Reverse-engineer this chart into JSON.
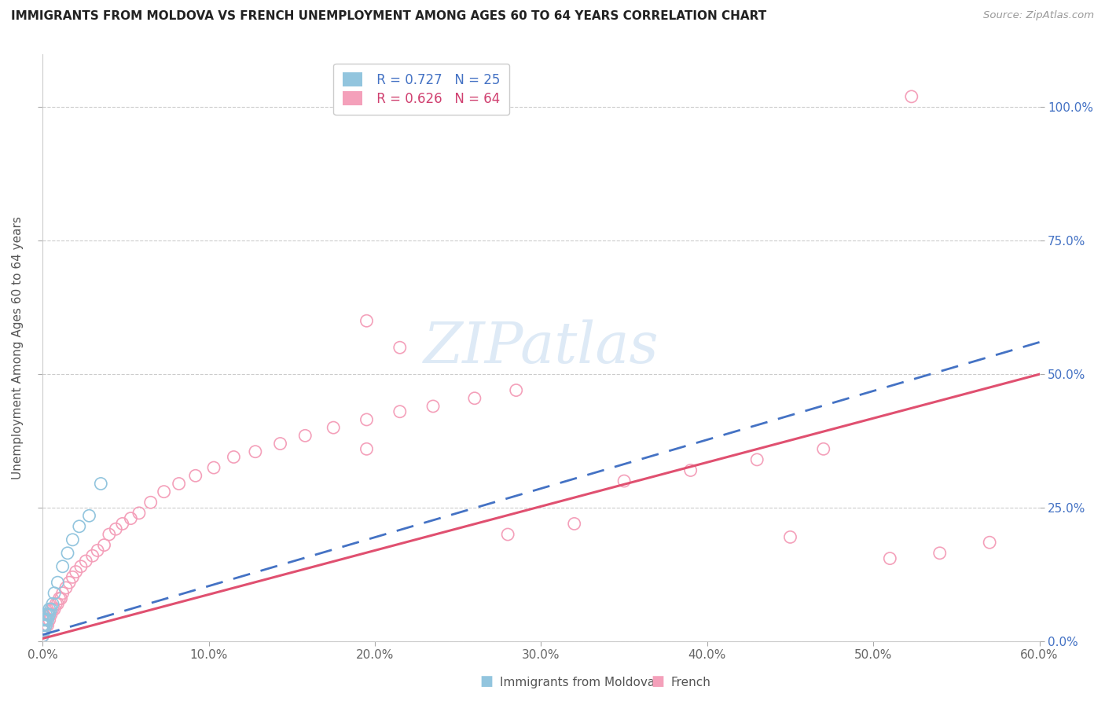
{
  "title": "IMMIGRANTS FROM MOLDOVA VS FRENCH UNEMPLOYMENT AMONG AGES 60 TO 64 YEARS CORRELATION CHART",
  "source": "Source: ZipAtlas.com",
  "ylabel": "Unemployment Among Ages 60 to 64 years",
  "xlim": [
    0.0,
    0.6
  ],
  "ylim": [
    0.0,
    1.1
  ],
  "xtick_labels": [
    "0.0%",
    "10.0%",
    "20.0%",
    "30.0%",
    "40.0%",
    "50.0%",
    "60.0%"
  ],
  "xtick_values": [
    0.0,
    0.1,
    0.2,
    0.3,
    0.4,
    0.5,
    0.6
  ],
  "ytick_labels_left": [
    "",
    "",
    "",
    "",
    ""
  ],
  "ytick_labels_right": [
    "0.0%",
    "25.0%",
    "50.0%",
    "75.0%",
    "100.0%"
  ],
  "ytick_values": [
    0.0,
    0.25,
    0.5,
    0.75,
    1.0
  ],
  "legend_labels_bottom": [
    "Immigrants from Moldova",
    "French"
  ],
  "r_moldova": 0.727,
  "n_moldova": 25,
  "r_french": 0.626,
  "n_french": 64,
  "color_moldova": "#92C5DE",
  "color_french": "#F4A0BA",
  "trendline_moldova_color": "#4472C4",
  "trendline_french_color": "#E05070",
  "watermark_color": "#C8DCF0",
  "title_fontsize": 11,
  "tick_fontsize": 11,
  "legend_fontsize": 12,
  "axis_label_fontsize": 11,
  "moldova_x": [
    0.0,
    0.0,
    0.0,
    0.0,
    0.0,
    0.001,
    0.001,
    0.001,
    0.002,
    0.002,
    0.002,
    0.003,
    0.003,
    0.004,
    0.004,
    0.005,
    0.006,
    0.007,
    0.009,
    0.012,
    0.015,
    0.018,
    0.022,
    0.028,
    0.035
  ],
  "moldova_y": [
    0.01,
    0.02,
    0.03,
    0.04,
    0.05,
    0.02,
    0.03,
    0.04,
    0.03,
    0.04,
    0.05,
    0.04,
    0.05,
    0.05,
    0.06,
    0.06,
    0.07,
    0.09,
    0.11,
    0.14,
    0.165,
    0.19,
    0.215,
    0.235,
    0.295
  ],
  "french_x": [
    0.0,
    0.0,
    0.0,
    0.0,
    0.001,
    0.001,
    0.001,
    0.002,
    0.002,
    0.003,
    0.003,
    0.004,
    0.004,
    0.005,
    0.006,
    0.007,
    0.008,
    0.009,
    0.01,
    0.011,
    0.012,
    0.014,
    0.016,
    0.018,
    0.02,
    0.023,
    0.026,
    0.03,
    0.033,
    0.037,
    0.04,
    0.044,
    0.048,
    0.053,
    0.058,
    0.065,
    0.073,
    0.082,
    0.092,
    0.103,
    0.115,
    0.128,
    0.143,
    0.158,
    0.175,
    0.195,
    0.215,
    0.235,
    0.26,
    0.285,
    0.195,
    0.215,
    0.195,
    0.35,
    0.39,
    0.43,
    0.47,
    0.28,
    0.32,
    0.45,
    0.51,
    0.54,
    0.57,
    0.523
  ],
  "french_y": [
    0.01,
    0.02,
    0.03,
    0.04,
    0.02,
    0.03,
    0.04,
    0.03,
    0.04,
    0.03,
    0.05,
    0.04,
    0.05,
    0.05,
    0.06,
    0.06,
    0.07,
    0.07,
    0.08,
    0.08,
    0.09,
    0.1,
    0.11,
    0.12,
    0.13,
    0.14,
    0.15,
    0.16,
    0.17,
    0.18,
    0.2,
    0.21,
    0.22,
    0.23,
    0.24,
    0.26,
    0.28,
    0.295,
    0.31,
    0.325,
    0.345,
    0.355,
    0.37,
    0.385,
    0.4,
    0.415,
    0.43,
    0.44,
    0.455,
    0.47,
    0.36,
    0.55,
    0.6,
    0.3,
    0.32,
    0.34,
    0.36,
    0.2,
    0.22,
    0.195,
    0.155,
    0.165,
    0.185,
    1.02
  ],
  "moldova_trend_x": [
    0.0,
    0.6
  ],
  "moldova_trend_y": [
    0.012,
    0.56
  ],
  "french_trend_x": [
    0.0,
    0.6
  ],
  "french_trend_y": [
    0.005,
    0.5
  ]
}
